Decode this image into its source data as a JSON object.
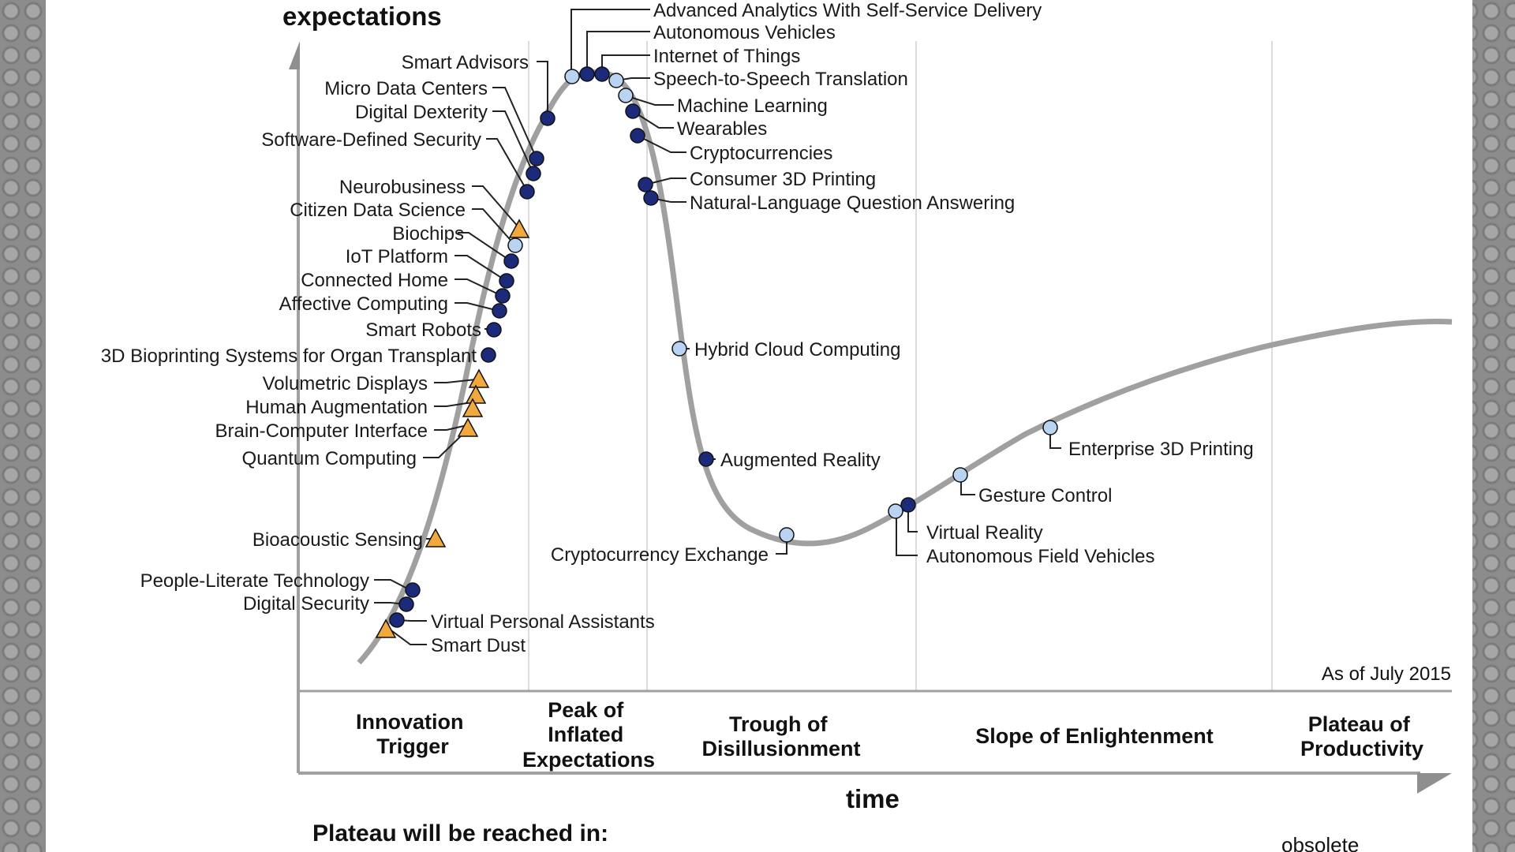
{
  "axes": {
    "y_title": "expectations",
    "x_title": "time"
  },
  "as_of": "As of July 2015",
  "phases": [
    {
      "lines": [
        "Innovation",
        "Trigger"
      ]
    },
    {
      "lines": [
        "Peak of",
        "Inflated",
        "Expectations"
      ]
    },
    {
      "lines": [
        "Trough of",
        "Disillusionment"
      ]
    },
    {
      "lines": [
        "Slope of Enlightenment"
      ]
    },
    {
      "lines": [
        "Plateau of",
        "Productivity"
      ]
    }
  ],
  "footer": {
    "plateau_label": "Plateau will be reached in:",
    "obsolete_label": "obsolete"
  },
  "colors": {
    "curve": "#a0a0a0",
    "dark_dot": "#1b2a7a",
    "light_dot": "#b8d4f2",
    "triangle": "#f2a93b",
    "gridline": "#dcdcdc"
  },
  "technologies": [
    {
      "name": "Advanced Analytics With Self-Service Delivery",
      "marker": "light"
    },
    {
      "name": "Autonomous Vehicles",
      "marker": "dark"
    },
    {
      "name": "Internet of Things",
      "marker": "dark"
    },
    {
      "name": "Speech-to-Speech Translation",
      "marker": "light"
    },
    {
      "name": "Machine Learning",
      "marker": "light"
    },
    {
      "name": "Wearables",
      "marker": "dark"
    },
    {
      "name": "Cryptocurrencies",
      "marker": "dark"
    },
    {
      "name": "Consumer 3D Printing",
      "marker": "dark"
    },
    {
      "name": "Natural-Language Question Answering",
      "marker": "dark"
    },
    {
      "name": "Smart Advisors",
      "marker": "dark"
    },
    {
      "name": "Micro Data Centers",
      "marker": "dark"
    },
    {
      "name": "Digital Dexterity",
      "marker": "dark"
    },
    {
      "name": "Software-Defined Security",
      "marker": "dark"
    },
    {
      "name": "Neurobusiness",
      "marker": "triangle"
    },
    {
      "name": "Citizen Data Science",
      "marker": "light"
    },
    {
      "name": "Biochips",
      "marker": "dark"
    },
    {
      "name": "IoT Platform",
      "marker": "dark"
    },
    {
      "name": "Connected Home",
      "marker": "dark"
    },
    {
      "name": "Affective Computing",
      "marker": "dark"
    },
    {
      "name": "Smart Robots",
      "marker": "dark"
    },
    {
      "name": "3D Bioprinting Systems for Organ Transplant",
      "marker": "dark"
    },
    {
      "name": "Volumetric Displays",
      "marker": "triangle"
    },
    {
      "name": "Human Augmentation",
      "marker": "triangle"
    },
    {
      "name": "Brain-Computer Interface",
      "marker": "triangle"
    },
    {
      "name": "Quantum Computing",
      "marker": "triangle"
    },
    {
      "name": "Bioacoustic Sensing",
      "marker": "triangle"
    },
    {
      "name": "People-Literate Technology",
      "marker": "dark"
    },
    {
      "name": "Digital Security",
      "marker": "dark"
    },
    {
      "name": "Virtual Personal Assistants",
      "marker": "dark"
    },
    {
      "name": "Smart Dust",
      "marker": "triangle"
    },
    {
      "name": "Hybrid Cloud Computing",
      "marker": "light"
    },
    {
      "name": "Augmented Reality",
      "marker": "dark"
    },
    {
      "name": "Cryptocurrency Exchange",
      "marker": "light"
    },
    {
      "name": "Virtual Reality",
      "marker": "dark"
    },
    {
      "name": "Autonomous Field Vehicles",
      "marker": "light"
    },
    {
      "name": "Gesture Control",
      "marker": "light"
    },
    {
      "name": "Enterprise 3D Printing",
      "marker": "light"
    }
  ]
}
